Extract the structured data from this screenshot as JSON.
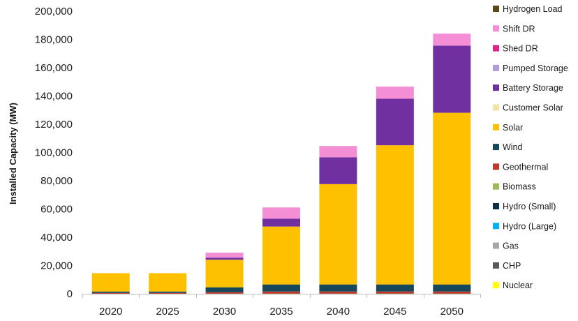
{
  "chart_data": {
    "type": "bar",
    "stacked": true,
    "title": "",
    "xlabel": "",
    "ylabel": "Installed Capacity (MW)",
    "ylim": [
      0,
      200000
    ],
    "yticks": [
      0,
      20000,
      40000,
      60000,
      80000,
      100000,
      120000,
      140000,
      160000,
      180000,
      200000
    ],
    "ytick_labels": [
      "0",
      "20,000",
      "40,000",
      "60,000",
      "80,000",
      "100,000",
      "120,000",
      "140,000",
      "160,000",
      "180,000",
      "200,000"
    ],
    "categories": [
      "2020",
      "2025",
      "2030",
      "2035",
      "2040",
      "2045",
      "2050"
    ],
    "grid": false,
    "legend_position": "right",
    "series": [
      {
        "name": "Nuclear",
        "color": "#ffff00",
        "values": [
          0,
          0,
          0,
          0,
          0,
          0,
          0
        ]
      },
      {
        "name": "CHP",
        "color": "#595959",
        "values": [
          0,
          0,
          0,
          0,
          0,
          0,
          0
        ]
      },
      {
        "name": "Gas",
        "color": "#a6a6a6",
        "values": [
          0,
          0,
          0,
          0,
          0,
          0,
          0
        ]
      },
      {
        "name": "Hydro (Large)",
        "color": "#00b0f0",
        "values": [
          0,
          0,
          0,
          0,
          0,
          0,
          0
        ]
      },
      {
        "name": "Hydro (Small)",
        "color": "#0e2f44",
        "values": [
          100,
          100,
          100,
          100,
          100,
          100,
          100
        ]
      },
      {
        "name": "Biomass",
        "color": "#9bbb59",
        "values": [
          0,
          0,
          0,
          0,
          0,
          0,
          0
        ]
      },
      {
        "name": "Geothermal",
        "color": "#c0392b",
        "values": [
          500,
          500,
          1000,
          1500,
          1500,
          1500,
          1500
        ]
      },
      {
        "name": "Wind",
        "color": "#17475a",
        "values": [
          1000,
          1000,
          3500,
          5000,
          5000,
          5000,
          5000
        ]
      },
      {
        "name": "Solar",
        "color": "#ffc000",
        "values": [
          13000,
          13000,
          19500,
          41000,
          71000,
          98500,
          121500
        ]
      },
      {
        "name": "Customer Solar",
        "color": "#f3e3a3",
        "values": [
          0,
          0,
          0,
          0,
          0,
          0,
          0
        ]
      },
      {
        "name": "Battery Storage",
        "color": "#7030a0",
        "values": [
          0,
          0,
          1500,
          5500,
          19000,
          33000,
          47500
        ]
      },
      {
        "name": "Pumped Storage",
        "color": "#b19cd9",
        "values": [
          0,
          0,
          0,
          0,
          0,
          0,
          0
        ]
      },
      {
        "name": "Shed DR",
        "color": "#e0218a",
        "values": [
          0,
          0,
          0,
          0,
          0,
          0,
          0
        ]
      },
      {
        "name": "Shift DR",
        "color": "#f48fd6",
        "values": [
          0,
          0,
          3500,
          8000,
          8000,
          8500,
          8500
        ]
      },
      {
        "name": "Hydrogen Load",
        "color": "#5c4a16",
        "values": [
          0,
          0,
          0,
          0,
          0,
          0,
          0
        ]
      }
    ]
  }
}
